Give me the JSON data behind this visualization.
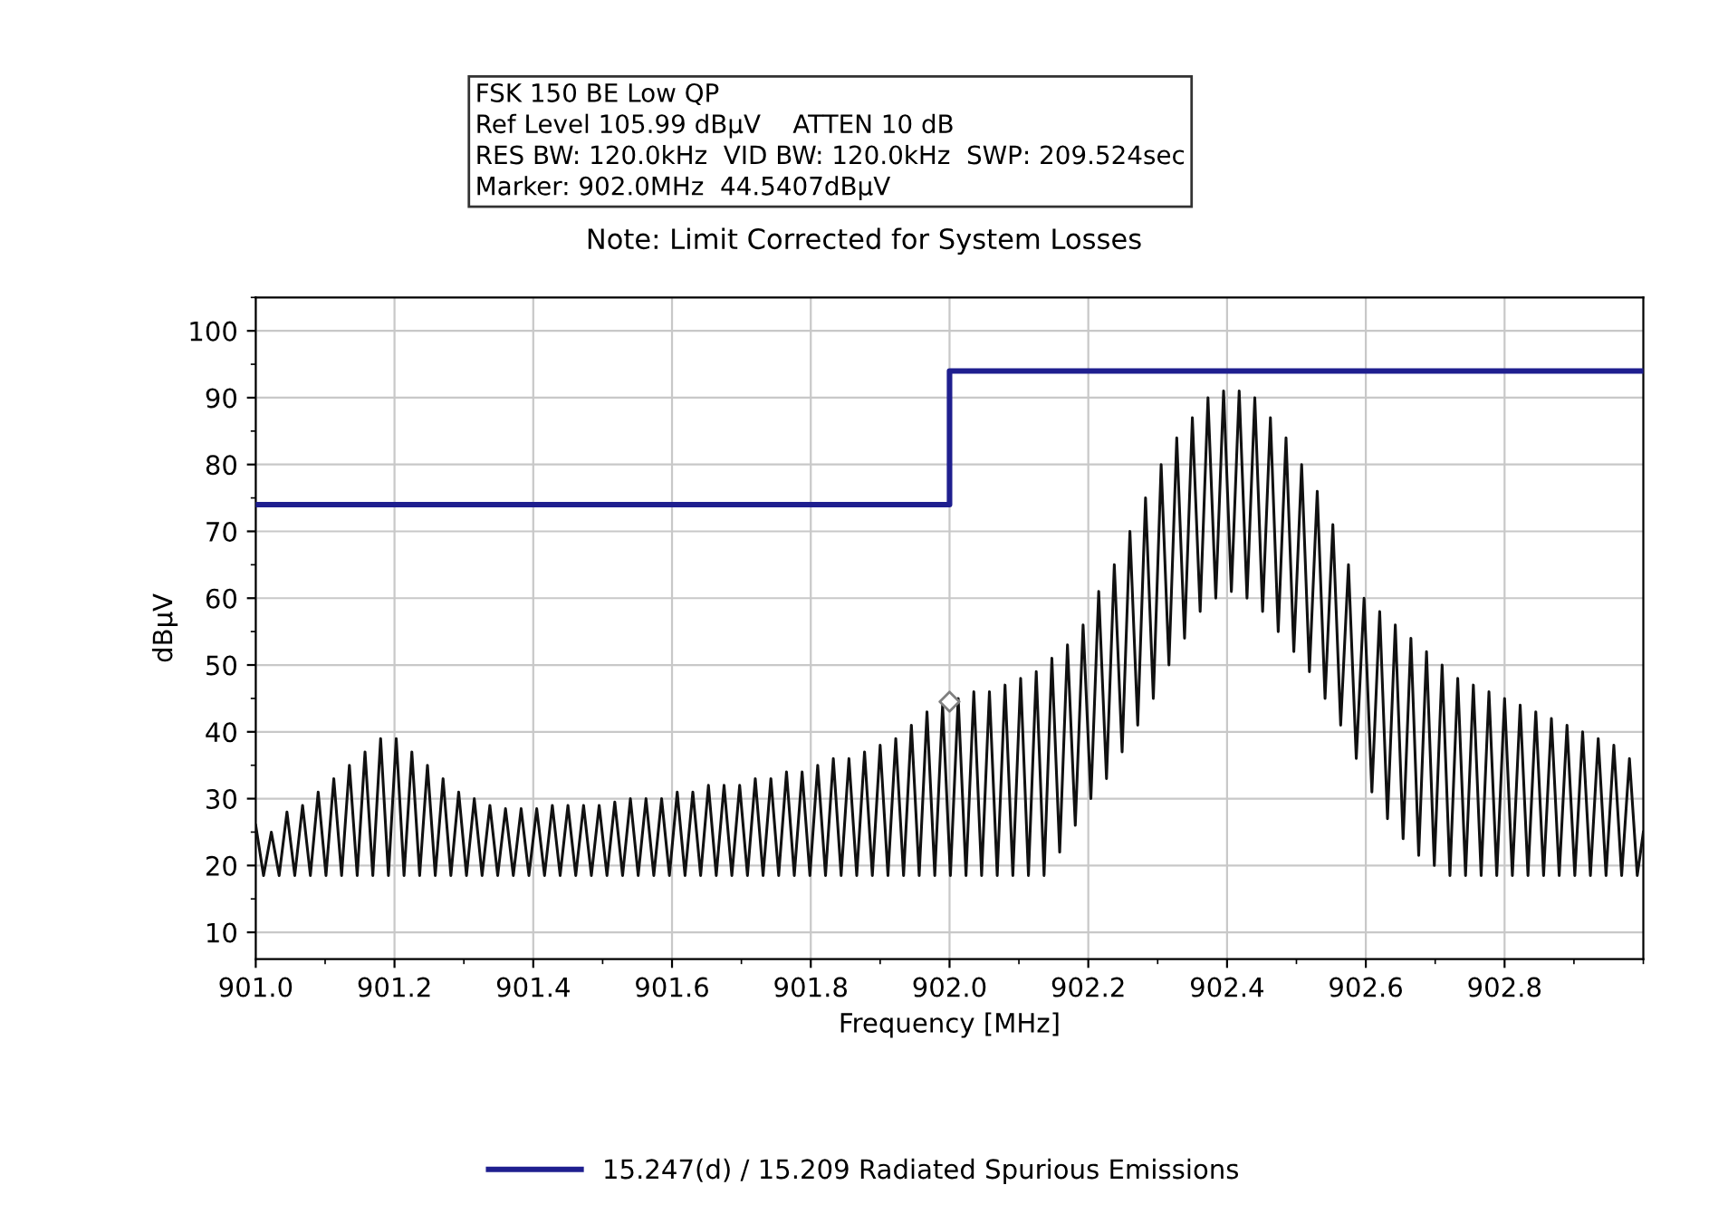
{
  "chart_data": {
    "type": "line",
    "subtitle": "Note: Limit Corrected for System Losses",
    "annotations": [
      "FSK 150 BE Low QP",
      "Ref Level 105.99 dBµV    ATTEN 10 dB",
      "RES BW: 120.0kHz  VID BW: 120.0kHz  SWP: 209.524sec",
      "Marker: 902.0MHz  44.5407dBµV"
    ],
    "xlabel": "Frequency [MHz]",
    "ylabel": "dBµV",
    "xlim": [
      901.0,
      903.0
    ],
    "xticks": [
      {
        "value": 901.0,
        "label": "901.0"
      },
      901.2,
      901.4,
      901.6,
      901.8,
      {
        "value": 902.0,
        "label": "902.0"
      },
      902.2,
      902.4,
      902.6,
      902.8
    ],
    "ylim": [
      6,
      105
    ],
    "yticks": [
      10,
      20,
      30,
      40,
      50,
      60,
      70,
      80,
      90,
      100
    ],
    "grid": true,
    "legend": "bottom",
    "series": [
      {
        "color": "#111111",
        "x": [
          901.0,
          901.01125,
          901.0225,
          901.03375,
          901.045,
          901.05625,
          901.0675,
          901.07875,
          901.09,
          901.10125,
          901.1125,
          901.12375,
          901.135,
          901.14625,
          901.1575,
          901.16875,
          901.18,
          901.19125,
          901.2025,
          901.21375,
          901.225,
          901.23625,
          901.2475,
          901.25875,
          901.27,
          901.28125,
          901.2925,
          901.30375,
          901.315,
          901.32625,
          901.3375,
          901.34875,
          901.36,
          901.37125,
          901.3825,
          901.39375,
          901.405,
          901.41625,
          901.4275,
          901.43875,
          901.45,
          901.46125,
          901.4725,
          901.48375,
          901.495,
          901.50625,
          901.5175,
          901.52875,
          901.54,
          901.55125,
          901.5625,
          901.57375,
          901.585,
          901.59625,
          901.6075,
          901.61875,
          901.63,
          901.64125,
          901.6525,
          901.66375,
          901.675,
          901.68625,
          901.6975,
          901.70875,
          901.72,
          901.73125,
          901.7425,
          901.75375,
          901.765,
          901.77625,
          901.7875,
          901.79875,
          901.81,
          901.82125,
          901.8325,
          901.84375,
          901.855,
          901.86625,
          901.8775,
          901.88875,
          901.9,
          901.91125,
          901.9225,
          901.93375,
          901.945,
          901.95625,
          901.9675,
          901.97875,
          901.99,
          902.00125,
          902.0125,
          902.02375,
          902.035,
          902.04625,
          902.0575,
          902.06875,
          902.08,
          902.09125,
          902.1025,
          902.11375,
          902.125,
          902.13625,
          902.1475,
          902.15875,
          902.17,
          902.18125,
          902.1925,
          902.20375,
          902.215,
          902.22625,
          902.2375,
          902.24875,
          902.26,
          902.27125,
          902.2825,
          902.29375,
          902.305,
          902.31625,
          902.3275,
          902.33875,
          902.35,
          902.36125,
          902.3725,
          902.38375,
          902.395,
          902.40625,
          902.4175,
          902.42875,
          902.44,
          902.45125,
          902.4625,
          902.47375,
          902.485,
          902.49625,
          902.5075,
          902.51875,
          902.53,
          902.54125,
          902.5525,
          902.56375,
          902.575,
          902.58625,
          902.5975,
          902.60875,
          902.62,
          902.63125,
          902.6425,
          902.65375,
          902.665,
          902.67625,
          902.6875,
          902.69875,
          902.71,
          902.72125,
          902.7325,
          902.74375,
          902.755,
          902.76625,
          902.7775,
          902.78875,
          902.8,
          902.81125,
          902.8225,
          902.83375,
          902.845,
          902.85625,
          902.8675,
          902.87875,
          902.89,
          902.90125,
          902.9125,
          902.92375,
          902.935,
          902.94625,
          902.9575,
          902.96875,
          902.98,
          902.99125,
          903.0
        ],
        "values": [
          26,
          18.5,
          25,
          18.5,
          28,
          18.5,
          29,
          18.5,
          31,
          18.5,
          33,
          18.5,
          35,
          18.5,
          37,
          18.5,
          39,
          18.5,
          39,
          18.5,
          37,
          18.5,
          35,
          18.5,
          33,
          18.5,
          31,
          18.5,
          30,
          18.5,
          29,
          18.5,
          28.5,
          18.5,
          28.5,
          18.5,
          28.5,
          18.5,
          29,
          18.5,
          29,
          18.5,
          29,
          18.5,
          29,
          18.5,
          29.5,
          18.5,
          30,
          18.5,
          30,
          18.5,
          30,
          18.5,
          31,
          18.5,
          31,
          18.5,
          32,
          18.5,
          32,
          18.5,
          32,
          18.5,
          33,
          18.5,
          33,
          18.5,
          34,
          18.5,
          34,
          18.5,
          35,
          18.5,
          36,
          18.5,
          36,
          18.5,
          37,
          18.5,
          38,
          18.5,
          39,
          18.5,
          41,
          18.5,
          43,
          18.5,
          44,
          18.5,
          45,
          18.5,
          46,
          18.5,
          46,
          18.5,
          47,
          18.5,
          48,
          18.5,
          49,
          18.5,
          51,
          22,
          53,
          26,
          56,
          30,
          61,
          33,
          65,
          37,
          70,
          41,
          75,
          45,
          80,
          50,
          84,
          54,
          87,
          58,
          90,
          60,
          91,
          61,
          91,
          60,
          90,
          58,
          87,
          55,
          84,
          52,
          80,
          49,
          76,
          45,
          71,
          41,
          65,
          36,
          60,
          31,
          58,
          27,
          56,
          24,
          54,
          21.5,
          52,
          20,
          50,
          18.5,
          48,
          18.5,
          47,
          18.5,
          46,
          18.5,
          45,
          18.5,
          44,
          18.5,
          43,
          18.5,
          42,
          18.5,
          41,
          18.5,
          40,
          18.5,
          39,
          18.5,
          38,
          18.5,
          36,
          18.5,
          25
        ]
      },
      {
        "type": "scatter",
        "color": "#808080",
        "marker": "diamond",
        "x": [
          902.0
        ],
        "values": [
          44.5
        ]
      },
      {
        "type": "step",
        "name": "15.247(d) / 15.209 Radiated Spurious Emissions",
        "color": "#1f1f8f",
        "x": [
          901.0,
          902.0,
          903.0
        ],
        "values": [
          74,
          94,
          94
        ]
      }
    ]
  }
}
